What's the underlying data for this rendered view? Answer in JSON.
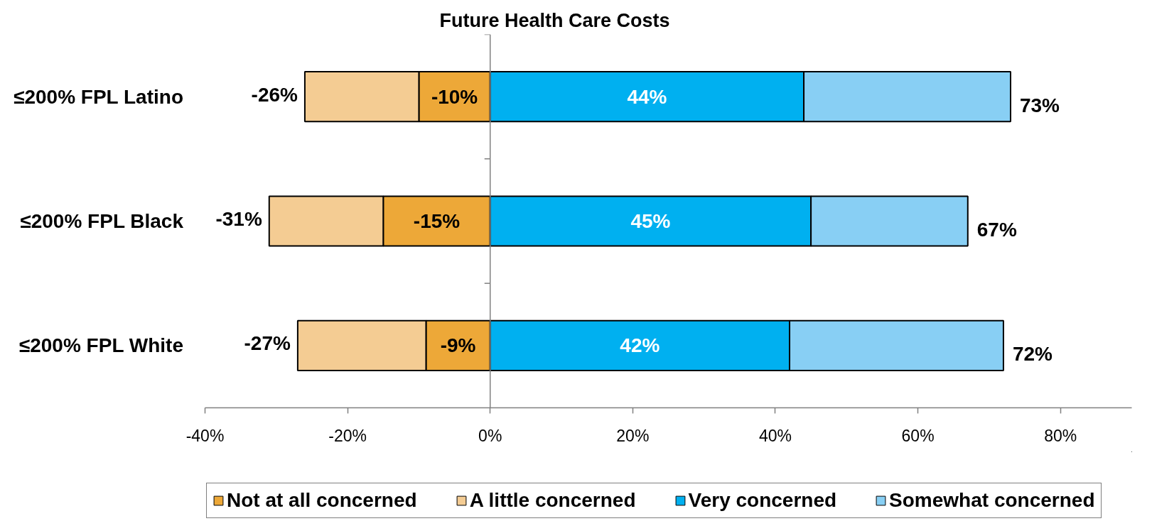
{
  "chart_data": {
    "type": "bar",
    "orientation": "horizontal",
    "stacked": true,
    "title": "Future Health Care Costs",
    "categories": [
      "≤200% FPL Latino",
      "≤200% FPL Black",
      "≤200% FPL White"
    ],
    "series": [
      {
        "name": "Not at all concerned",
        "color": "#eda838",
        "values": [
          -10,
          -15,
          -9
        ],
        "value_labels": [
          "-10%",
          "-15%",
          "-9%"
        ]
      },
      {
        "name": "A little concerned",
        "color": "#f4cc93",
        "values": [
          -16,
          -16,
          -18
        ]
      },
      {
        "name": "Very concerned",
        "color": "#00b0f0",
        "values": [
          44,
          45,
          42
        ],
        "value_labels": [
          "44%",
          "45%",
          "42%"
        ]
      },
      {
        "name": "Somewhat concerned",
        "color": "#88cff4",
        "values": [
          29,
          22,
          30
        ]
      }
    ],
    "annotations": [
      {
        "text": "-26%",
        "x": -26,
        "y": "≤200% FPL Latino"
      },
      {
        "text": "-31%",
        "x": -31,
        "y": "≤200% FPL Black"
      },
      {
        "text": "-27%",
        "x": -27,
        "y": "≤200% FPL White"
      },
      {
        "text": "73%",
        "x": 73,
        "y": "≤200% FPL Latino"
      },
      {
        "text": "67%",
        "x": 67,
        "y": "≤200% FPL Black"
      },
      {
        "text": "72%",
        "x": 72,
        "y": "≤200% FPL White"
      }
    ],
    "xlim": [
      -40,
      90
    ],
    "xticks": [
      {
        "value": -40,
        "label": "-40%"
      },
      {
        "value": -20,
        "label": "-20%"
      },
      {
        "value": 0,
        "label": "0%"
      },
      {
        "value": 20,
        "label": "20%"
      },
      {
        "value": 40,
        "label": "40%"
      },
      {
        "value": 60,
        "label": "60%"
      },
      {
        "value": 80,
        "label": "80%"
      }
    ],
    "legend": "bottom"
  }
}
